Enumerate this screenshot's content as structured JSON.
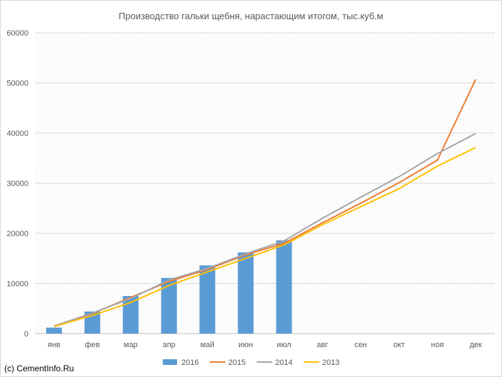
{
  "chart_data": {
    "type": "bar+line",
    "title": "Производство гальки щебня, нарастающим итогом, тыс.куб.м",
    "categories": [
      "янв",
      "фев",
      "мар",
      "апр",
      "май",
      "июн",
      "июл",
      "авг",
      "сен",
      "окт",
      "ноя",
      "дек"
    ],
    "y_ticks": [
      "0",
      "10000",
      "20000",
      "30000",
      "40000",
      "50000",
      "60000"
    ],
    "ylim": [
      0,
      60000
    ],
    "grid": "horizontal",
    "plot_background": "diagonal-hatch",
    "legend_position": "bottom",
    "series": [
      {
        "name": "2016",
        "kind": "bar",
        "color": "#5B9BD5",
        "values": [
          1200,
          4400,
          7500,
          11100,
          13600,
          16200,
          18600,
          null,
          null,
          null,
          null,
          null
        ]
      },
      {
        "name": "2015",
        "kind": "line",
        "color": "#ED7D31",
        "values": [
          1500,
          4000,
          7200,
          10400,
          12800,
          15700,
          18000,
          22100,
          26000,
          30100,
          34600,
          50700
        ]
      },
      {
        "name": "2014",
        "kind": "line",
        "color": "#A5A5A5",
        "values": [
          1500,
          4100,
          7000,
          10700,
          13000,
          15900,
          18500,
          23000,
          27200,
          31300,
          35900,
          39900
        ]
      },
      {
        "name": "2013",
        "kind": "line",
        "color": "#FFC000",
        "values": [
          1400,
          3600,
          6200,
          9600,
          12300,
          15000,
          17700,
          21700,
          25300,
          28900,
          33400,
          37100
        ]
      }
    ]
  },
  "credit": "(c) CementInfo.Ru"
}
